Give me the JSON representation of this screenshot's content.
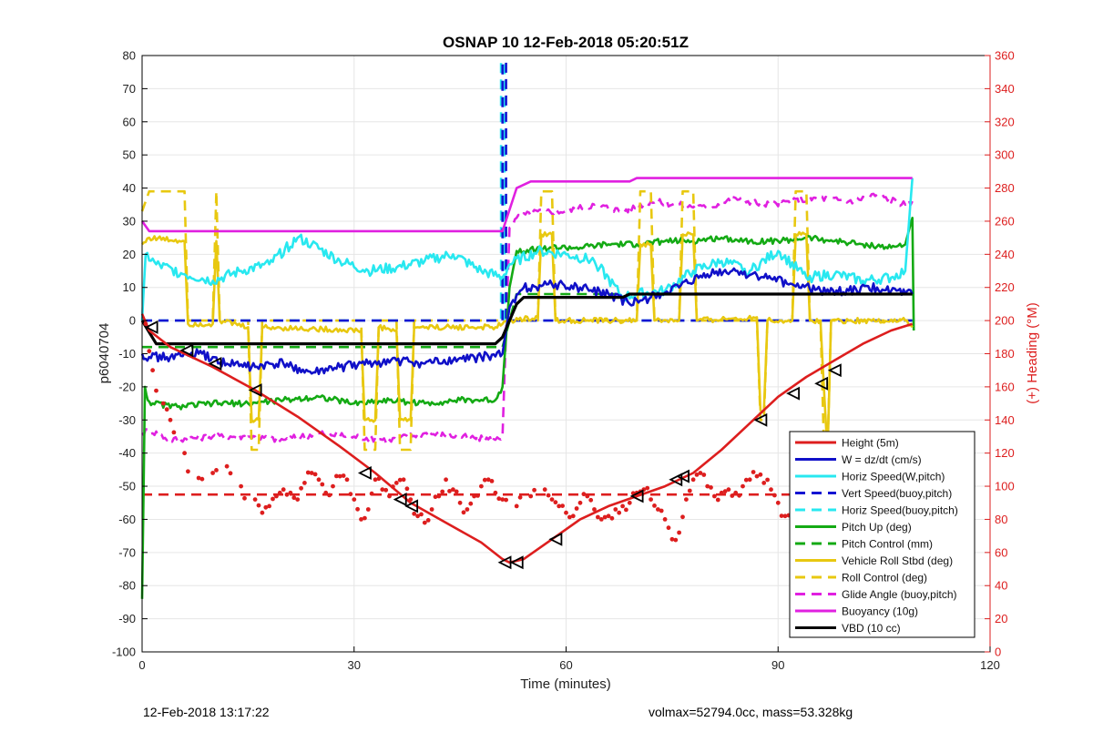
{
  "chart_data": {
    "type": "line",
    "title": "OSNAP 10 12-Feb-2018 05:20:51Z",
    "xlabel": "Time (minutes)",
    "ylabel": "p6040704",
    "y2label": "(+) Heading (°M)",
    "xlim": [
      0,
      120
    ],
    "ylim": [
      -100,
      80
    ],
    "y2lim": [
      0,
      360
    ],
    "xticks": [
      0,
      30,
      60,
      90,
      120
    ],
    "yticks": [
      -100,
      -90,
      -80,
      -70,
      -60,
      -50,
      -40,
      -30,
      -20,
      -10,
      0,
      10,
      20,
      30,
      40,
      50,
      60,
      70,
      80
    ],
    "y2ticks": [
      0,
      20,
      40,
      60,
      80,
      100,
      120,
      140,
      160,
      180,
      200,
      220,
      240,
      260,
      280,
      300,
      320,
      340,
      360
    ],
    "grid": true,
    "legend_position": "bottom-right",
    "colors": {
      "height": "#dd1e1e",
      "w": "#1010c8",
      "horiz": "#28e8f0",
      "vert_buoy": "#1414d2",
      "horiz_buoy": "#28e8f0",
      "pitch_up": "#14aa14",
      "pitch_control": "#14aa14",
      "roll": "#e8c810",
      "roll_control": "#e8c810",
      "glide": "#e020e0",
      "buoyancy": "#e020e0",
      "vbd": "#000000",
      "heading": "#dd1e1e"
    },
    "series": [
      {
        "name": "Height (5m)",
        "key": "height",
        "style": "solid",
        "x": [
          0,
          1,
          4,
          10,
          16,
          22,
          28,
          33,
          38,
          43,
          48,
          51,
          52,
          54,
          58,
          62,
          66,
          70,
          74,
          78,
          82,
          86,
          90,
          94,
          98,
          102,
          106,
          109
        ],
        "y": [
          2,
          -3,
          -8,
          -14,
          -21,
          -29,
          -38,
          -46,
          -55,
          -61,
          -67,
          -72,
          -73,
          -72,
          -66,
          -60,
          -56,
          -53,
          -50,
          -46,
          -39,
          -31,
          -23,
          -17,
          -12,
          -7,
          -3,
          -1
        ]
      },
      {
        "name": "W = dz/dt (cm/s)",
        "key": "w",
        "style": "solid",
        "noise": 1.4,
        "x": [
          0,
          1,
          4,
          8,
          12,
          16,
          20,
          24,
          28,
          32,
          36,
          40,
          44,
          48,
          51,
          52,
          54,
          58,
          62,
          66,
          69,
          72,
          76,
          80,
          84,
          88,
          92,
          96,
          100,
          104,
          108,
          109
        ],
        "y": [
          -10,
          -11,
          -11,
          -10,
          -13,
          -14,
          -13,
          -16,
          -14,
          -13,
          -12,
          -13,
          -12,
          -11,
          -10,
          4,
          10,
          11,
          10,
          8,
          5,
          7,
          10,
          14,
          15,
          13,
          11,
          9,
          9,
          10,
          8,
          8
        ]
      },
      {
        "name": "Horiz Speed(W,pitch)",
        "key": "horiz",
        "style": "solid",
        "noise": 1.6,
        "x": [
          0,
          0.5,
          2,
          6,
          10,
          14,
          18,
          22,
          24,
          28,
          32,
          36,
          40,
          44,
          48,
          51,
          52,
          56,
          60,
          64,
          68,
          70,
          74,
          78,
          82,
          86,
          90,
          94,
          98,
          102,
          106,
          108,
          109
        ],
        "y": [
          0,
          20,
          17,
          14,
          12,
          15,
          17,
          25,
          23,
          18,
          15,
          16,
          18,
          20,
          15,
          13,
          17,
          21,
          20,
          18,
          7,
          8,
          9,
          15,
          18,
          15,
          21,
          13,
          14,
          12,
          13,
          15,
          43
        ]
      },
      {
        "name": "Vert Speed(buoy,pitch)",
        "key": "vert_buoy",
        "style": "dashed",
        "x": [
          0,
          51,
          51,
          51.5,
          51.5,
          109
        ],
        "y": [
          0,
          0,
          78,
          78,
          0,
          0
        ]
      },
      {
        "name": "Horiz Speed(buoy,pitch)",
        "key": "horiz_buoy",
        "style": "dashed",
        "x": [
          0,
          50.8,
          50.8,
          51.3,
          51.3,
          109
        ],
        "y": [
          0,
          0,
          78,
          78,
          0,
          0
        ]
      },
      {
        "name": "Pitch Up (deg)",
        "key": "pitch_up",
        "style": "solid",
        "noise": 0.9,
        "x": [
          0,
          0.4,
          0.8,
          1.5,
          5,
          10,
          15,
          20,
          25,
          30,
          35,
          40,
          45,
          50,
          51,
          52,
          53,
          58,
          62,
          66,
          70,
          74,
          78,
          82,
          86,
          90,
          94,
          98,
          102,
          106,
          108,
          109,
          109.2
        ],
        "y": [
          -84,
          -20,
          -24,
          -25,
          -26,
          -25,
          -25,
          -24,
          -23,
          -25,
          -24,
          -25,
          -24,
          -24,
          -20,
          10,
          21,
          22,
          22,
          23,
          23,
          24,
          24,
          25,
          24,
          24,
          25,
          24,
          23,
          22,
          23,
          31,
          -3
        ]
      },
      {
        "name": "Pitch Control (mm)",
        "key": "pitch_control",
        "style": "dashed",
        "x": [
          0,
          51,
          53,
          109
        ],
        "y": [
          -8,
          -8,
          8,
          8
        ]
      },
      {
        "name": "Vehicle Roll Stbd (deg)",
        "key": "roll",
        "style": "solid",
        "noise": 0.8,
        "x": [
          0,
          1,
          6,
          6.5,
          10,
          10.5,
          11,
          15,
          15.5,
          16.5,
          17,
          31,
          31.5,
          33,
          33.5,
          36,
          36.5,
          38,
          38.5,
          50,
          51,
          52,
          56,
          56.5,
          58,
          58.5,
          60,
          70,
          70.5,
          72,
          72.5,
          76,
          76.5,
          78,
          78.5,
          87,
          87.5,
          88,
          88.5,
          92,
          92.5,
          94,
          94.5,
          96,
          96.5,
          97,
          97.5,
          100,
          108,
          109
        ],
        "y": [
          23,
          25,
          24,
          -1,
          -1,
          24,
          0,
          -2,
          -30,
          -30,
          -2,
          -3,
          -30,
          -30,
          -2,
          -3,
          -30,
          -30,
          -2,
          -2,
          -1,
          0,
          1,
          26,
          26,
          0,
          0,
          0,
          23,
          23,
          0,
          0,
          26,
          26,
          0,
          1,
          -27,
          -27,
          0,
          0,
          26,
          26,
          0,
          0,
          -21,
          -40,
          0,
          0,
          0,
          -2
        ]
      },
      {
        "name": "Roll Control (deg)",
        "key": "roll_control",
        "style": "dashed",
        "x": [
          0,
          1,
          6,
          6.5,
          10,
          10.5,
          11,
          15,
          15.5,
          16.5,
          17,
          31,
          31.5,
          33,
          33.5,
          36,
          36.5,
          38,
          38.5,
          51,
          56,
          56.5,
          58,
          58.5,
          60,
          70,
          70.5,
          72,
          72.5,
          76,
          76.5,
          78,
          78.5,
          87,
          87.5,
          88,
          88.5,
          92,
          92.5,
          94,
          94.5,
          96,
          96.5,
          97,
          97.5,
          100,
          109
        ],
        "y": [
          33,
          39,
          39,
          0,
          0,
          39,
          0,
          0,
          -39,
          -39,
          0,
          0,
          -39,
          -39,
          0,
          0,
          -39,
          -39,
          0,
          0,
          0,
          39,
          39,
          0,
          0,
          0,
          39,
          39,
          0,
          0,
          39,
          39,
          0,
          0,
          -30,
          -30,
          0,
          0,
          39,
          39,
          0,
          0,
          -39,
          -39,
          0,
          0,
          0
        ]
      },
      {
        "name": "Glide Angle (buoy,pitch)",
        "key": "glide",
        "style": "dashed",
        "noise": 1.0,
        "x": [
          0,
          1,
          4,
          10,
          15,
          20,
          25,
          30,
          35,
          40,
          45,
          50,
          51,
          52,
          53,
          56,
          60,
          64,
          68,
          72,
          76,
          80,
          84,
          88,
          92,
          96,
          100,
          104,
          108,
          109
        ],
        "y": [
          -34,
          -33,
          -36,
          -35,
          -35,
          -36,
          -34,
          -35,
          -36,
          -34,
          -35,
          -36,
          -35,
          28,
          31,
          33,
          33,
          35,
          33,
          36,
          35,
          34,
          37,
          35,
          36,
          37,
          36,
          38,
          35,
          36
        ]
      },
      {
        "name": "Buoyancy (10g)",
        "key": "buoyancy",
        "style": "solid",
        "x": [
          0,
          1,
          51,
          53,
          55,
          69,
          70,
          109
        ],
        "y": [
          30,
          27,
          27,
          40,
          42,
          42,
          43,
          43
        ]
      },
      {
        "name": "VBD (10 cc)",
        "key": "vbd",
        "style": "solid",
        "x": [
          0,
          2,
          50,
          51,
          53,
          54,
          68,
          69,
          109
        ],
        "y": [
          0,
          -7,
          -7,
          -5,
          5,
          7,
          7,
          8,
          8
        ]
      },
      {
        "name": "",
        "key": "heading_mean",
        "style": "dashed",
        "axis": "right",
        "x": [
          0,
          109
        ],
        "y": [
          95,
          95
        ]
      },
      {
        "name": "",
        "key": "heading_points",
        "style": "points",
        "axis": "right",
        "x": [
          0.5,
          1.5,
          3,
          4,
          6,
          8,
          10,
          12,
          14,
          16,
          17,
          18,
          19,
          20,
          21,
          22,
          23,
          24,
          25,
          26,
          27,
          28,
          29,
          30,
          31,
          32,
          33,
          34,
          35,
          36,
          37,
          38,
          39,
          40,
          41,
          42,
          43,
          44,
          45,
          46,
          47,
          48,
          49,
          50,
          51,
          53,
          55,
          57,
          58,
          59,
          60,
          61,
          62,
          63,
          64,
          65,
          66,
          67,
          68,
          69,
          70,
          71,
          72,
          73,
          74,
          75,
          76,
          77,
          78,
          79,
          80,
          81,
          82,
          83,
          84,
          85,
          86,
          87,
          88,
          89,
          90,
          91,
          92,
          93,
          94,
          95,
          96,
          97,
          98,
          99,
          100,
          101,
          102,
          103,
          104,
          105,
          106,
          107,
          108
        ],
        "y": [
          198,
          170,
          150,
          140,
          120,
          105,
          108,
          112,
          100,
          92,
          84,
          88,
          94,
          98,
          96,
          92,
          102,
          108,
          104,
          96,
          100,
          106,
          104,
          92,
          80,
          86,
          104,
          98,
          94,
          102,
          104,
          92,
          82,
          78,
          86,
          94,
          104,
          98,
          90,
          86,
          94,
          100,
          104,
          96,
          92,
          88,
          94,
          98,
          92,
          88,
          84,
          82,
          90,
          94,
          86,
          80,
          82,
          86,
          88,
          90,
          96,
          98,
          92,
          86,
          80,
          68,
          72,
          92,
          104,
          108,
          100,
          94,
          96,
          98,
          96,
          100,
          104,
          106,
          102,
          98,
          90,
          82,
          80,
          86,
          90,
          94,
          96,
          92,
          98,
          100,
          96,
          94,
          102,
          98,
          96,
          100,
          98,
          96,
          94
        ]
      }
    ],
    "markers": {
      "x": [
        1.5,
        6.5,
        10.5,
        16.2,
        31.7,
        36.7,
        38.3,
        51.5,
        53.2,
        58.7,
        70.2,
        75.7,
        76.7,
        87.7,
        92.3,
        96.3,
        98.2
      ],
      "y": [
        -2,
        -9,
        -13,
        -21,
        -46,
        -54,
        -56,
        -73,
        -73,
        -66,
        -53,
        -48,
        -47,
        -30,
        -22,
        -19,
        -15
      ]
    }
  },
  "footer": {
    "left": "12-Feb-2018 13:17:22",
    "right": "volmax=52794.0cc, mass=53.328kg"
  }
}
